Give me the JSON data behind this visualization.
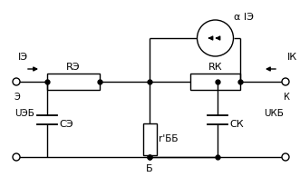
{
  "background_color": "#ffffff",
  "line_color": "#000000",
  "labels": {
    "I_E": "IЭ",
    "R_E": "RЭ",
    "R_K": "RК",
    "C_E": "CЭ",
    "C_K": "CК",
    "r_BB": "r'ББ",
    "alpha_IE": "α IЭ",
    "I_K": "IК",
    "U_EB": "UЭБ",
    "U_KB": "UКБ",
    "E_node": "Э",
    "K_node": "К",
    "B_node": "Б"
  }
}
